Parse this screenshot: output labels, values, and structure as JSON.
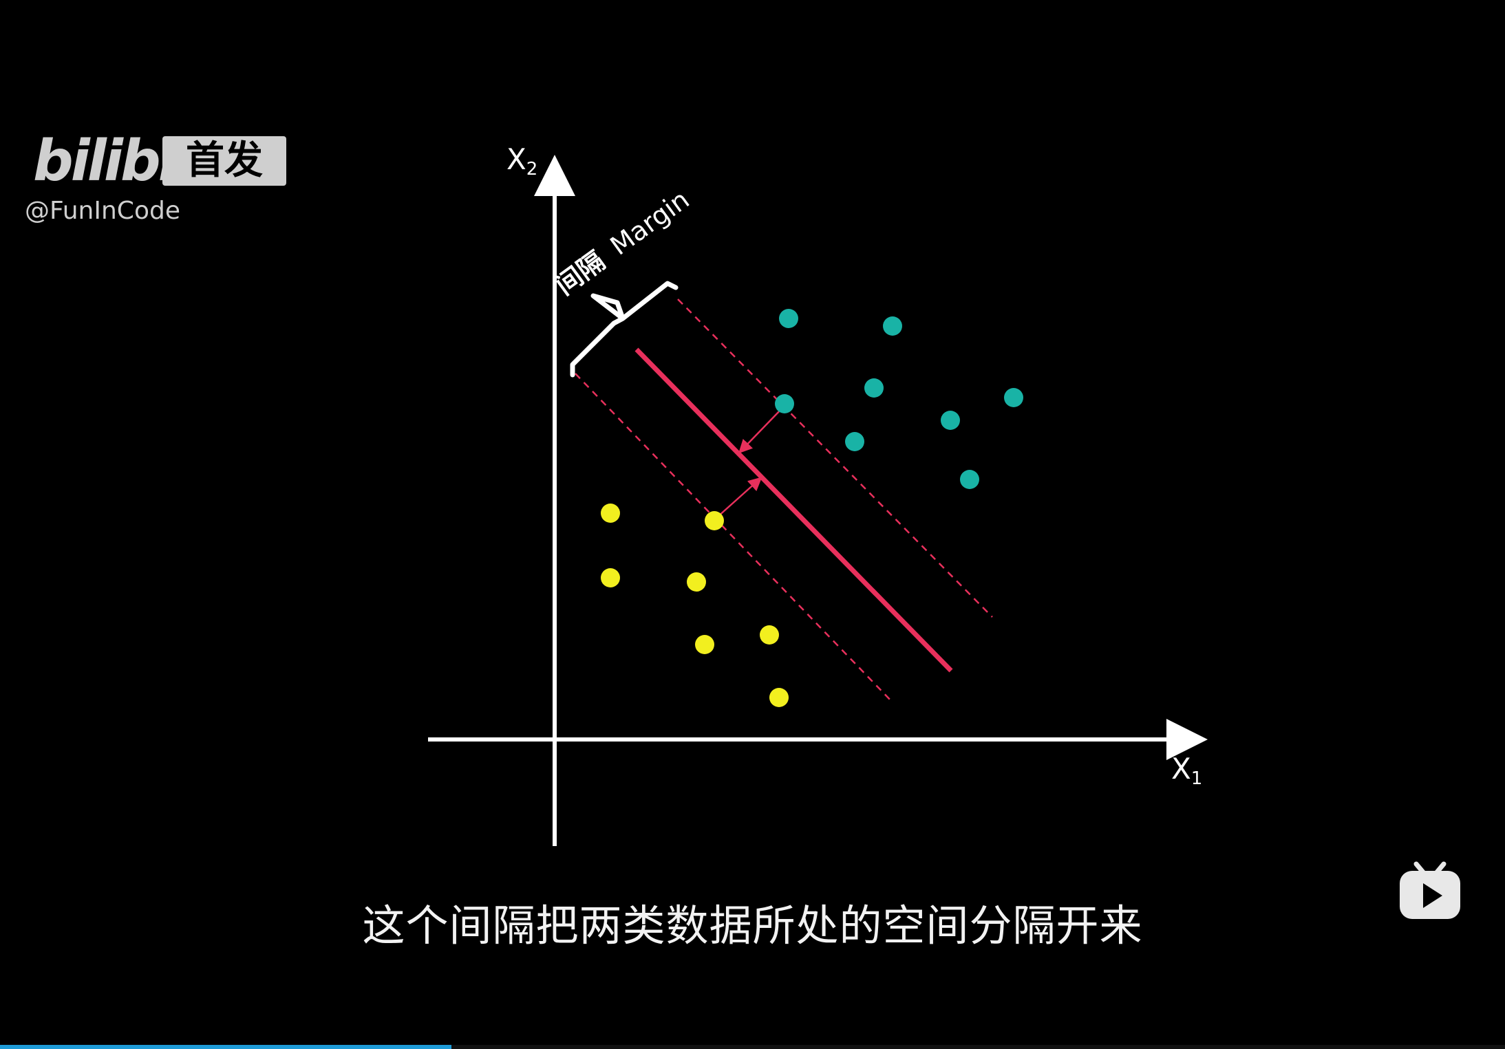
{
  "watermark": {
    "brand": "bilibili",
    "badge": "首发",
    "handle": "@FunInCode"
  },
  "subtitle": "这个间隔把两类数据所处的空间分隔开来",
  "diagram": {
    "axis_x_label": "X",
    "axis_x_sub": "1",
    "axis_y_label": "X",
    "axis_y_sub": "2",
    "margin_label_cn": "间隔",
    "margin_label_en": "Margin",
    "hyperplane_color": "#e8305c",
    "class_a_color": "#19b3a6",
    "class_b_color": "#f2ef1f"
  },
  "player": {
    "play_icon": "bilibili-tv-play-icon",
    "progress": 0.3
  }
}
